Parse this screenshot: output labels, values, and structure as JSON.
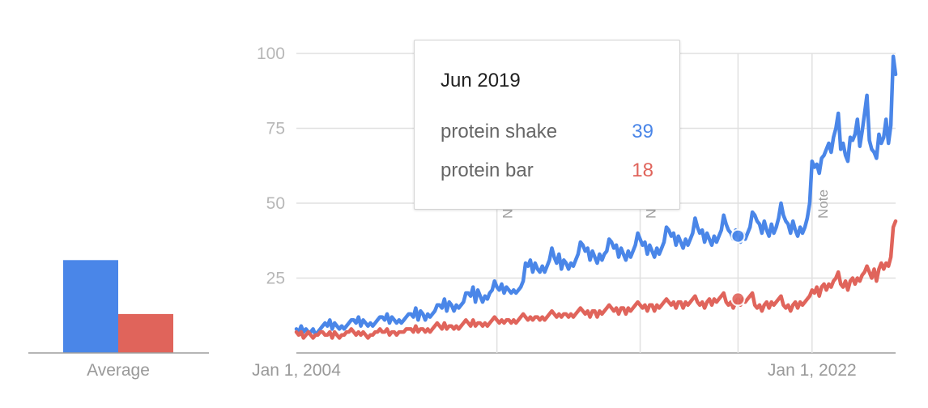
{
  "chart_data": [
    {
      "type": "bar",
      "categories": [
        "Average"
      ],
      "series": [
        {
          "name": "protein shake",
          "values": [
            31
          ],
          "color": "#4a86e8"
        },
        {
          "name": "protein bar",
          "values": [
            13
          ],
          "color": "#e0645b"
        }
      ],
      "ylim": [
        0,
        100
      ]
    },
    {
      "type": "line",
      "x_start": "Jan 1, 2004",
      "x_end": "Dec 2024",
      "x_tick_labels": [
        "Jan 1, 2004",
        "Jan 1, 2022"
      ],
      "y_ticks": [
        25,
        50,
        75,
        100
      ],
      "ylim": [
        0,
        100
      ],
      "grid": true,
      "notes": [
        {
          "label": "Note",
          "date": "2011-01"
        },
        {
          "label": "Note",
          "date": "2016-01"
        }
      ],
      "note_last": {
        "label": "Note",
        "date": "2022-01"
      },
      "series": [
        {
          "name": "protein shake",
          "color": "#4a86e8",
          "values": [
            8,
            7,
            9,
            7,
            8,
            7,
            7,
            8,
            6,
            7,
            8,
            9,
            10,
            9,
            11,
            8,
            10,
            9,
            8,
            9,
            8,
            9,
            10,
            11,
            11,
            10,
            12,
            9,
            11,
            10,
            9,
            10,
            9,
            10,
            11,
            12,
            12,
            11,
            13,
            10,
            12,
            11,
            10,
            11,
            10,
            11,
            12,
            13,
            13,
            12,
            15,
            11,
            14,
            13,
            11,
            13,
            12,
            13,
            14,
            16,
            16,
            15,
            18,
            14,
            17,
            16,
            14,
            16,
            15,
            16,
            17,
            20,
            20,
            19,
            22,
            17,
            21,
            19,
            17,
            19,
            18,
            20,
            21,
            24,
            22,
            21,
            23,
            20,
            22,
            21,
            20,
            21,
            20,
            21,
            22,
            24,
            30,
            29,
            31,
            27,
            30,
            28,
            27,
            29,
            27,
            29,
            31,
            35,
            32,
            30,
            33,
            28,
            31,
            30,
            28,
            30,
            29,
            31,
            33,
            37,
            36,
            34,
            35,
            31,
            34,
            32,
            30,
            33,
            31,
            33,
            34,
            38,
            37,
            35,
            36,
            32,
            35,
            33,
            31,
            34,
            32,
            34,
            36,
            40,
            38,
            36,
            37,
            33,
            36,
            34,
            32,
            35,
            33,
            35,
            37,
            42,
            41,
            39,
            40,
            36,
            39,
            37,
            35,
            38,
            36,
            38,
            40,
            45,
            42,
            40,
            41,
            37,
            40,
            38,
            36,
            39,
            37,
            39,
            41,
            46,
            43,
            41,
            40,
            38,
            41,
            39,
            37,
            40,
            38,
            40,
            42,
            47,
            46,
            44,
            43,
            40,
            44,
            41,
            39,
            43,
            40,
            42,
            45,
            50,
            46,
            44,
            43,
            40,
            44,
            41,
            39,
            42,
            40,
            42,
            45,
            50,
            64,
            62,
            63,
            60,
            65,
            66,
            68,
            70,
            67,
            72,
            75,
            80,
            68,
            70,
            66,
            64,
            72,
            71,
            73,
            78,
            69,
            74,
            80,
            86,
            71,
            68,
            67,
            65,
            73,
            70,
            72,
            78,
            70,
            76,
            99,
            93
          ]
        },
        {
          "name": "protein bar",
          "color": "#e0645b",
          "values": [
            7,
            6,
            7,
            5,
            6,
            7,
            6,
            5,
            6,
            6,
            7,
            7,
            6,
            6,
            7,
            5,
            7,
            6,
            5,
            6,
            6,
            7,
            7,
            8,
            7,
            6,
            7,
            6,
            7,
            6,
            5,
            6,
            6,
            7,
            7,
            8,
            7,
            7,
            8,
            6,
            7,
            7,
            6,
            7,
            7,
            7,
            8,
            8,
            8,
            7,
            9,
            7,
            8,
            8,
            7,
            8,
            7,
            8,
            9,
            10,
            9,
            8,
            10,
            8,
            9,
            9,
            8,
            9,
            8,
            9,
            10,
            11,
            10,
            9,
            11,
            9,
            10,
            10,
            9,
            10,
            9,
            10,
            11,
            12,
            11,
            10,
            11,
            10,
            11,
            11,
            10,
            11,
            10,
            11,
            12,
            13,
            12,
            11,
            12,
            11,
            12,
            12,
            11,
            12,
            11,
            12,
            13,
            14,
            13,
            12,
            13,
            12,
            13,
            13,
            12,
            13,
            12,
            13,
            14,
            15,
            14,
            13,
            14,
            12,
            14,
            14,
            12,
            14,
            13,
            14,
            15,
            16,
            15,
            14,
            15,
            13,
            15,
            15,
            13,
            15,
            14,
            15,
            16,
            17,
            16,
            15,
            16,
            14,
            16,
            16,
            14,
            16,
            15,
            16,
            17,
            18,
            17,
            16,
            17,
            15,
            17,
            17,
            15,
            17,
            16,
            17,
            18,
            19,
            17,
            16,
            17,
            15,
            17,
            18,
            16,
            18,
            17,
            18,
            19,
            20,
            17,
            16,
            17,
            15,
            17,
            18,
            16,
            18,
            17,
            18,
            19,
            20,
            16,
            15,
            16,
            14,
            16,
            17,
            15,
            17,
            16,
            17,
            18,
            19,
            16,
            15,
            16,
            14,
            16,
            17,
            15,
            17,
            16,
            17,
            18,
            19,
            21,
            20,
            22,
            19,
            22,
            23,
            21,
            23,
            22,
            24,
            25,
            27,
            23,
            22,
            24,
            21,
            24,
            25,
            23,
            25,
            24,
            26,
            27,
            29,
            27,
            25,
            28,
            24,
            28,
            30,
            28,
            30,
            29,
            32,
            42,
            44
          ]
        }
      ]
    }
  ],
  "tooltip": {
    "title": "Jun 2019",
    "rows": [
      {
        "label": "protein shake",
        "value": "39",
        "color": "#4a86e8"
      },
      {
        "label": "protein bar",
        "value": "18",
        "color": "#e0645b"
      }
    ]
  },
  "hover_date": "2019-06",
  "average_label": "Average",
  "colors": {
    "grid": "#e0e0e0",
    "axis": "#9e9e9e"
  }
}
